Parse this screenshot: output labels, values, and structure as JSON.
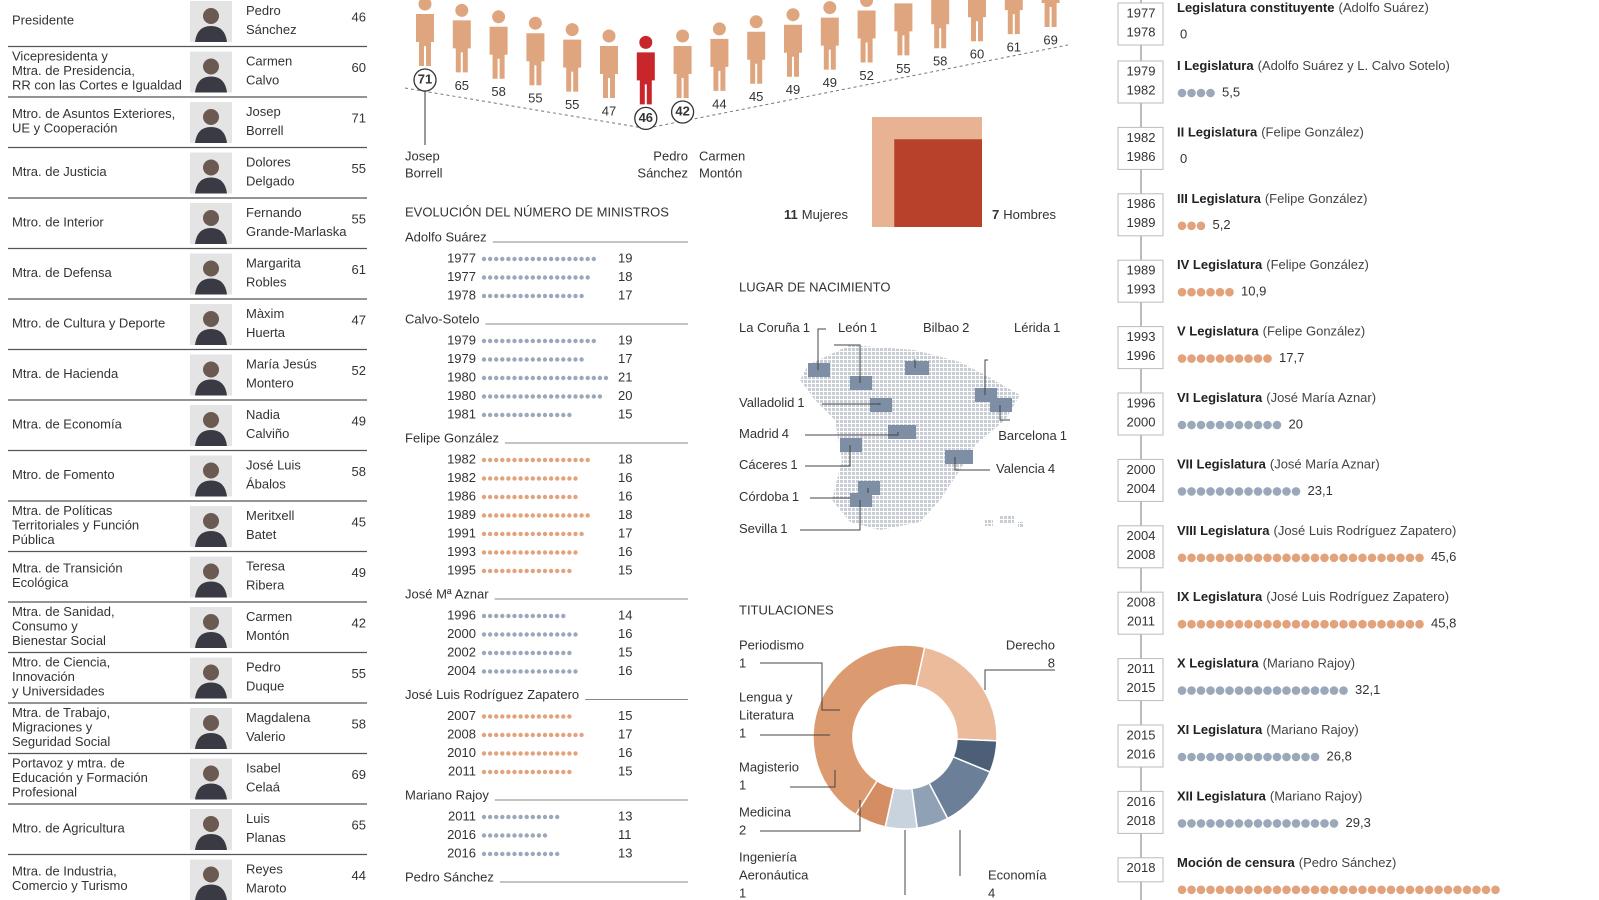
{
  "ministers": [
    {
      "post": [
        "Presidente"
      ],
      "name": [
        "Pedro",
        "Sánchez"
      ],
      "age": 46
    },
    {
      "post": [
        "Vicepresidenta y",
        "Mtra. de Presidencia,",
        "RR con las Cortes e Igualdad"
      ],
      "name": [
        "Carmen",
        "Calvo"
      ],
      "age": 60
    },
    {
      "post": [
        "Mtro. de Asuntos Exteriores,",
        "UE y Cooperación"
      ],
      "name": [
        "Josep",
        "Borrell"
      ],
      "age": 71
    },
    {
      "post": [
        "Mtra. de Justicia"
      ],
      "name": [
        "Dolores",
        "Delgado"
      ],
      "age": 55
    },
    {
      "post": [
        "Mtro. de Interior"
      ],
      "name": [
        "Fernando",
        "Grande-Marlaska"
      ],
      "age": 55
    },
    {
      "post": [
        "Mtra. de Defensa"
      ],
      "name": [
        "Margarita",
        "Robles"
      ],
      "age": 61
    },
    {
      "post": [
        "Mtro. de Cultura y Deporte"
      ],
      "name": [
        "Màxim",
        "Huerta"
      ],
      "age": 47
    },
    {
      "post": [
        "Mtra. de Hacienda"
      ],
      "name": [
        "María Jesús",
        "Montero"
      ],
      "age": 52
    },
    {
      "post": [
        "Mtra. de Economía"
      ],
      "name": [
        "Nadia",
        "Calviño"
      ],
      "age": 49
    },
    {
      "post": [
        "Mtro. de Fomento"
      ],
      "name": [
        "José Luis",
        "Ábalos"
      ],
      "age": 58
    },
    {
      "post": [
        "Mtra. de Políticas",
        "Territoriales y Función",
        "Pública"
      ],
      "name": [
        "Meritxell",
        "Batet"
      ],
      "age": 45
    },
    {
      "post": [
        "Mtra. de Transición",
        "Ecológica"
      ],
      "name": [
        "Teresa",
        "Ribera"
      ],
      "age": 49
    },
    {
      "post": [
        "Mtra. de Sanidad,",
        "Consumo y",
        "Bienestar Social"
      ],
      "name": [
        "Carmen",
        "Montón"
      ],
      "age": 42
    },
    {
      "post": [
        "Mtro. de Ciencia,",
        "Innovación",
        "y Universidades"
      ],
      "name": [
        "Pedro",
        "Duque"
      ],
      "age": 55
    },
    {
      "post": [
        "Mtra. de Trabajo,",
        "Migraciones y",
        "Seguridad Social"
      ],
      "name": [
        "Magdalena",
        "Valerio"
      ],
      "age": 58
    },
    {
      "post": [
        "Portavoz y mtra. de",
        "Educación y Formación",
        "Profesional"
      ],
      "name": [
        "Isabel",
        "Celaá"
      ],
      "age": 69
    },
    {
      "post": [
        "Mtro. de Agricultura"
      ],
      "name": [
        "Luis",
        "Planas"
      ],
      "age": 65
    },
    {
      "post": [
        "Mtra. de Industria,",
        "Comercio y Turismo"
      ],
      "name": [
        "Reyes",
        "Maroto"
      ],
      "age": 44
    }
  ],
  "age_chart": {
    "figures": [
      {
        "age": 71,
        "color": "#dfa57f",
        "circled": true
      },
      {
        "age": 65,
        "color": "#dfa57f",
        "circled": false
      },
      {
        "age": 58,
        "color": "#dfa57f",
        "circled": false
      },
      {
        "age": 55,
        "color": "#dfa57f",
        "circled": false
      },
      {
        "age": 55,
        "color": "#dfa57f",
        "circled": false
      },
      {
        "age": 47,
        "color": "#dfa57f",
        "circled": false
      },
      {
        "age": 46,
        "color": "#c8262b",
        "circled": true
      },
      {
        "age": 42,
        "color": "#dfa57f",
        "circled": true
      },
      {
        "age": 44,
        "color": "#dfa57f",
        "circled": false
      },
      {
        "age": 45,
        "color": "#dfa57f",
        "circled": false
      },
      {
        "age": 49,
        "color": "#dfa57f",
        "circled": false
      },
      {
        "age": 49,
        "color": "#dfa57f",
        "circled": false
      },
      {
        "age": 52,
        "color": "#dfa57f",
        "circled": false
      },
      {
        "age": 55,
        "color": "#dfa57f",
        "circled": false
      },
      {
        "age": 58,
        "color": "#dfa57f",
        "circled": false
      },
      {
        "age": 60,
        "color": "#dfa57f",
        "circled": false
      },
      {
        "age": 61,
        "color": "#dfa57f",
        "circled": false
      },
      {
        "age": 69,
        "color": "#dfa57f",
        "circled": false
      }
    ],
    "callouts": [
      [
        "Josep",
        "Borrell"
      ],
      [
        "Pedro",
        "Sánchez"
      ],
      [
        "Carmen",
        "Montón"
      ]
    ]
  },
  "gender": {
    "women": {
      "count": 11,
      "label": "Mujeres",
      "color": "#e7b393"
    },
    "men": {
      "count": 7,
      "label": "Hombres",
      "color": "#b8412c"
    }
  },
  "evolution": {
    "title": "EVOLUCIÓN DEL NÚMERO DE MINISTROS",
    "groups": [
      {
        "leader": "Adolfo Suárez",
        "color": "#9aa8ba",
        "rows": [
          {
            "year": "1977",
            "count": 19
          },
          {
            "year": "1977",
            "count": 18
          },
          {
            "year": "1978",
            "count": 17
          }
        ]
      },
      {
        "leader": "Calvo-Sotelo",
        "color": "#9aa8ba",
        "rows": [
          {
            "year": "1979",
            "count": 19
          },
          {
            "year": "1979",
            "count": 17
          },
          {
            "year": "1980",
            "count": 21
          },
          {
            "year": "1980",
            "count": 20
          },
          {
            "year": "1981",
            "count": 15
          }
        ]
      },
      {
        "leader": "Felipe González",
        "color": "#e2a27b",
        "rows": [
          {
            "year": "1982",
            "count": 18
          },
          {
            "year": "1982",
            "count": 16
          },
          {
            "year": "1986",
            "count": 16
          },
          {
            "year": "1989",
            "count": 18
          },
          {
            "year": "1991",
            "count": 17
          },
          {
            "year": "1993",
            "count": 16
          },
          {
            "year": "1995",
            "count": 15
          }
        ]
      },
      {
        "leader": "José Mª Aznar",
        "color": "#9aa8ba",
        "rows": [
          {
            "year": "1996",
            "count": 14
          },
          {
            "year": "2000",
            "count": 16
          },
          {
            "year": "2002",
            "count": 15
          },
          {
            "year": "2004",
            "count": 16
          }
        ]
      },
      {
        "leader": "José Luis Rodríguez Zapatero",
        "color": "#e2a27b",
        "rows": [
          {
            "year": "2007",
            "count": 15
          },
          {
            "year": "2008",
            "count": 17
          },
          {
            "year": "2010",
            "count": 16
          },
          {
            "year": "2011",
            "count": 15
          }
        ]
      },
      {
        "leader": "Mariano Rajoy",
        "color": "#9aa8ba",
        "rows": [
          {
            "year": "2011",
            "count": 13
          },
          {
            "year": "2016",
            "count": 11
          },
          {
            "year": "2016",
            "count": 13
          }
        ]
      },
      {
        "leader": "Pedro Sánchez",
        "color": "#e2a27b",
        "rows": []
      }
    ]
  },
  "birthplaces": {
    "title": "LUGAR DE NACIMIENTO",
    "places": [
      {
        "name": "La Coruña",
        "count": 1
      },
      {
        "name": "León",
        "count": 1
      },
      {
        "name": "Bilbao",
        "count": 2
      },
      {
        "name": "Lérida",
        "count": 1
      },
      {
        "name": "Valladolid",
        "count": 1
      },
      {
        "name": "Madrid",
        "count": 4
      },
      {
        "name": "Barcelona",
        "count": 1
      },
      {
        "name": "Cáceres",
        "count": 1
      },
      {
        "name": "Valencia",
        "count": 4
      },
      {
        "name": "Córdoba",
        "count": 1
      },
      {
        "name": "Sevilla",
        "count": 1
      }
    ]
  },
  "degrees": {
    "title": "TITULACIONES",
    "items": [
      {
        "lines": [
          "Derecho"
        ],
        "count": 8,
        "color": "#dc9a70"
      },
      {
        "lines": [
          "Economía"
        ],
        "count": 4,
        "color": "#ebbb9c"
      },
      {
        "lines": [
          "Ingeniería",
          "Aeronáutica"
        ],
        "count": 1,
        "color": "#4c5f77"
      },
      {
        "lines": [
          "Medicina"
        ],
        "count": 2,
        "color": "#6b7f98"
      },
      {
        "lines": [
          "Magisterio"
        ],
        "count": 1,
        "color": "#91a1b5"
      },
      {
        "lines": [
          "Lengua y",
          "Literatura"
        ],
        "count": 1,
        "color": "#c9d3de"
      },
      {
        "lines": [
          "Periodismo"
        ],
        "count": 1,
        "color": "#d58e63"
      }
    ]
  },
  "legislatures": [
    {
      "start": "1977",
      "end": "1978",
      "name": "Legislatura constituyente",
      "leader": "(Adolfo Suárez)",
      "value": 0,
      "label": "0",
      "color": "#9aa8ba"
    },
    {
      "start": "1979",
      "end": "1982",
      "name": "I Legislatura",
      "leader": "(Adolfo Suárez y L. Calvo Sotelo)",
      "value": 5.5,
      "label": "5,5",
      "color": "#9aa8ba"
    },
    {
      "start": "1982",
      "end": "1986",
      "name": "II Legislatura",
      "leader": "(Felipe González)",
      "value": 0,
      "label": "0",
      "color": "#e2a27b"
    },
    {
      "start": "1986",
      "end": "1989",
      "name": "III Legislatura",
      "leader": "(Felipe González)",
      "value": 5.2,
      "label": "5,2",
      "color": "#e2a27b"
    },
    {
      "start": "1989",
      "end": "1993",
      "name": "IV Legislatura",
      "leader": "(Felipe González)",
      "value": 10.9,
      "label": "10,9",
      "color": "#e2a27b"
    },
    {
      "start": "1993",
      "end": "1996",
      "name": "V Legislatura",
      "leader": "(Felipe González)",
      "value": 17.7,
      "label": "17,7",
      "color": "#e2a27b"
    },
    {
      "start": "1996",
      "end": "2000",
      "name": "VI Legislatura",
      "leader": "(José María Aznar)",
      "value": 20,
      "label": "20",
      "color": "#9aa8ba"
    },
    {
      "start": "2000",
      "end": "2004",
      "name": "VII Legislatura",
      "leader": "(José María Aznar)",
      "value": 23.1,
      "label": "23,1",
      "color": "#9aa8ba"
    },
    {
      "start": "2004",
      "end": "2008",
      "name": "VIII Legislatura",
      "leader": "(José Luis Rodríguez Zapatero)",
      "value": 45.6,
      "label": "45,6",
      "color": "#e2a27b"
    },
    {
      "start": "2008",
      "end": "2011",
      "name": "IX Legislatura",
      "leader": "(José Luis Rodríguez Zapatero)",
      "value": 45.8,
      "label": "45,8",
      "color": "#e2a27b"
    },
    {
      "start": "2011",
      "end": "2015",
      "name": "X Legislatura",
      "leader": "(Mariano Rajoy)",
      "value": 32.1,
      "label": "32,1",
      "color": "#9aa8ba"
    },
    {
      "start": "2015",
      "end": "2016",
      "name": "XI Legislatura",
      "leader": "(Mariano Rajoy)",
      "value": 26.8,
      "label": "26,8",
      "color": "#9aa8ba"
    },
    {
      "start": "2016",
      "end": "2018",
      "name": "XII Legislatura",
      "leader": "(Mariano Rajoy)",
      "value": 29.3,
      "label": "29,3",
      "color": "#9aa8ba"
    },
    {
      "start": "2018",
      "name": "Moción de censura",
      "leader": "(Pedro Sánchez)",
      "value": 61.1,
      "color": "#e2a27b"
    }
  ]
}
